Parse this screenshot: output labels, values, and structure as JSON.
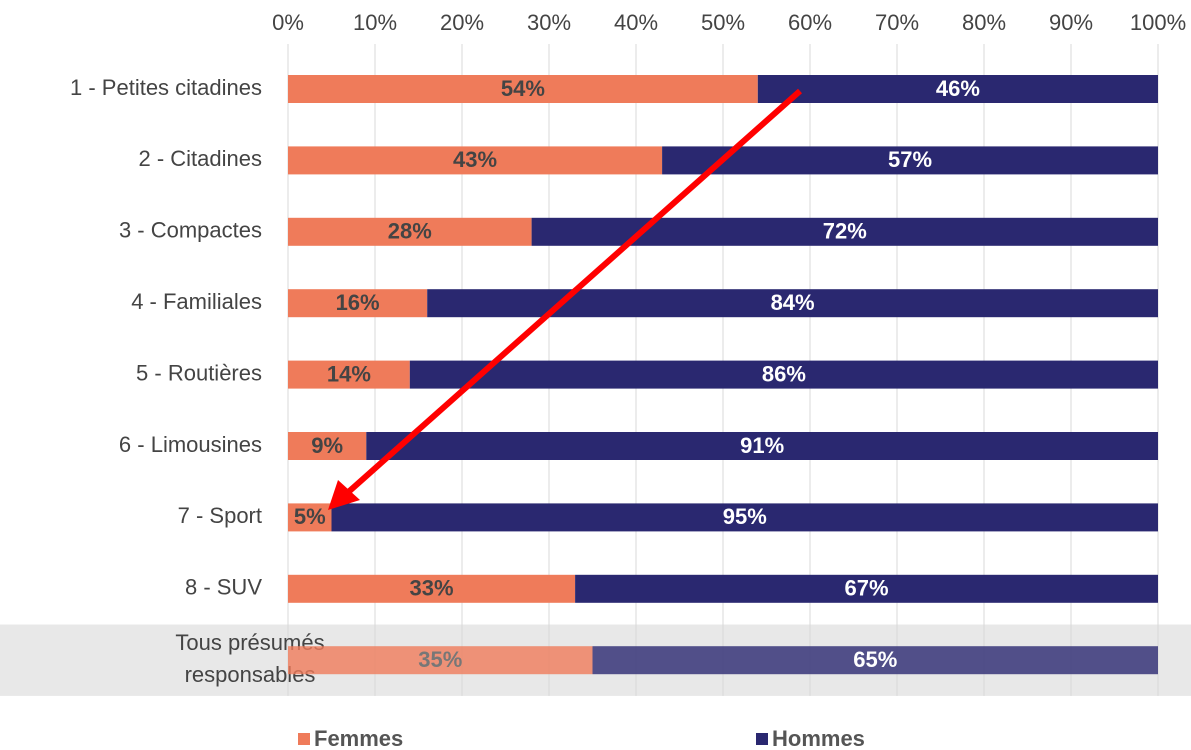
{
  "chart_data": {
    "type": "stacked_bar_horizontal",
    "categories": [
      "1 - Petites citadines",
      "2 - Citadines",
      "3 - Compactes",
      "4 - Familiales",
      "5 - Routières",
      "6 - Limousines",
      "7 - Sport",
      "8 - SUV",
      "Tous présumés responsables"
    ],
    "series": [
      {
        "name": "Femmes",
        "color": "#ef7b5a",
        "values": [
          54,
          43,
          28,
          16,
          14,
          9,
          5,
          33,
          35
        ],
        "value_labels": [
          "54%",
          "43%",
          "28%",
          "16%",
          "14%",
          "9%",
          "5%",
          "33%",
          "35%"
        ]
      },
      {
        "name": "Hommes",
        "color": "#2a2870",
        "values": [
          46,
          57,
          72,
          84,
          86,
          91,
          95,
          67,
          65
        ],
        "value_labels": [
          "46%",
          "57%",
          "72%",
          "84%",
          "86%",
          "91%",
          "95%",
          "67%",
          "65%"
        ]
      }
    ],
    "xlim": [
      0,
      100
    ],
    "xticks": [
      {
        "value": 0,
        "label": "0%"
      },
      {
        "value": 10,
        "label": "10%"
      },
      {
        "value": 20,
        "label": "20%"
      },
      {
        "value": 30,
        "label": "30%"
      },
      {
        "value": 40,
        "label": "40%"
      },
      {
        "value": 50,
        "label": "50%"
      },
      {
        "value": 60,
        "label": "60%"
      },
      {
        "value": 70,
        "label": "70%"
      },
      {
        "value": 80,
        "label": "80%"
      },
      {
        "value": 90,
        "label": "90%"
      },
      {
        "value": 100,
        "label": "100%"
      }
    ],
    "grid": true,
    "legend": "bottom",
    "highlight": 8
  }
}
